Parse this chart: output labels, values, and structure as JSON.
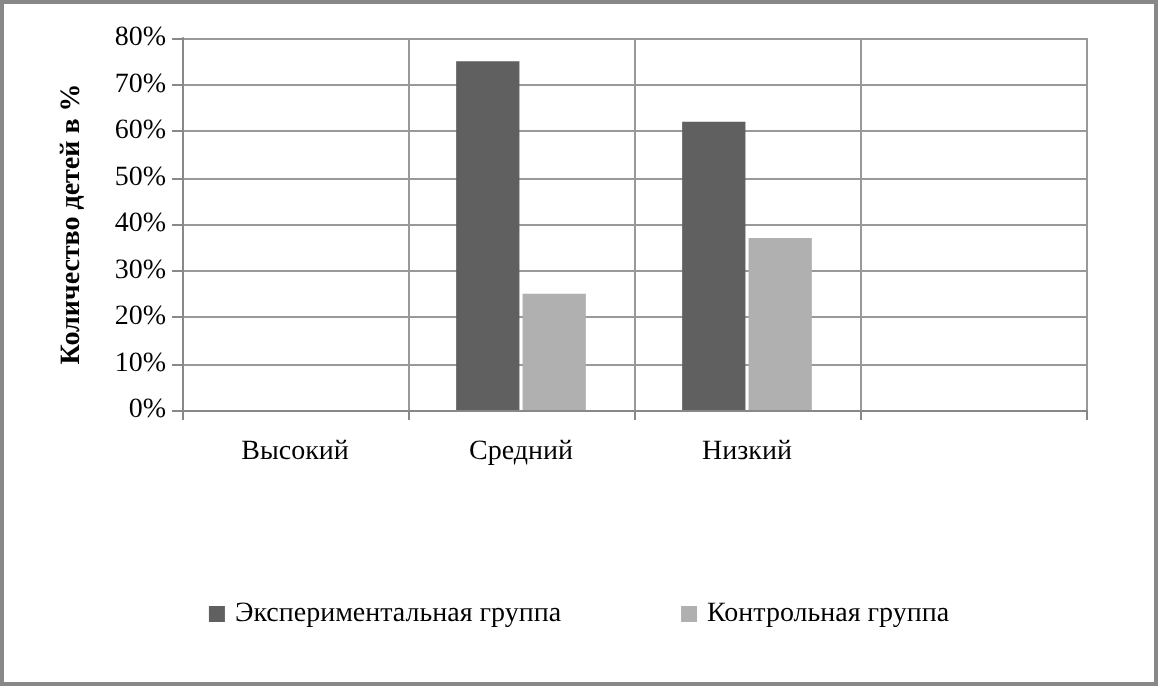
{
  "chart_data": {
    "type": "bar",
    "ylabel": "Количество детей в %",
    "categories": [
      "Высокий",
      "Средний",
      "Низкий",
      null
    ],
    "series": [
      {
        "name": "Экспериментальная группа",
        "color": "#606060",
        "values": [
          0,
          75,
          62,
          null
        ]
      },
      {
        "name": "Контрольная группа",
        "color": "#b0b0b0",
        "values": [
          0,
          25,
          37,
          null
        ]
      }
    ],
    "ylim": [
      0,
      80
    ],
    "yticks": [
      {
        "value": 0,
        "label": "0%"
      },
      {
        "value": 10,
        "label": "10%"
      },
      {
        "value": 20,
        "label": "20%"
      },
      {
        "value": 30,
        "label": "30%"
      },
      {
        "value": 40,
        "label": "40%"
      },
      {
        "value": 50,
        "label": "50%"
      },
      {
        "value": 60,
        "label": "60%"
      },
      {
        "value": 70,
        "label": "70%"
      },
      {
        "value": 80,
        "label": "80%"
      }
    ],
    "grid": true,
    "legend": "bottom"
  }
}
